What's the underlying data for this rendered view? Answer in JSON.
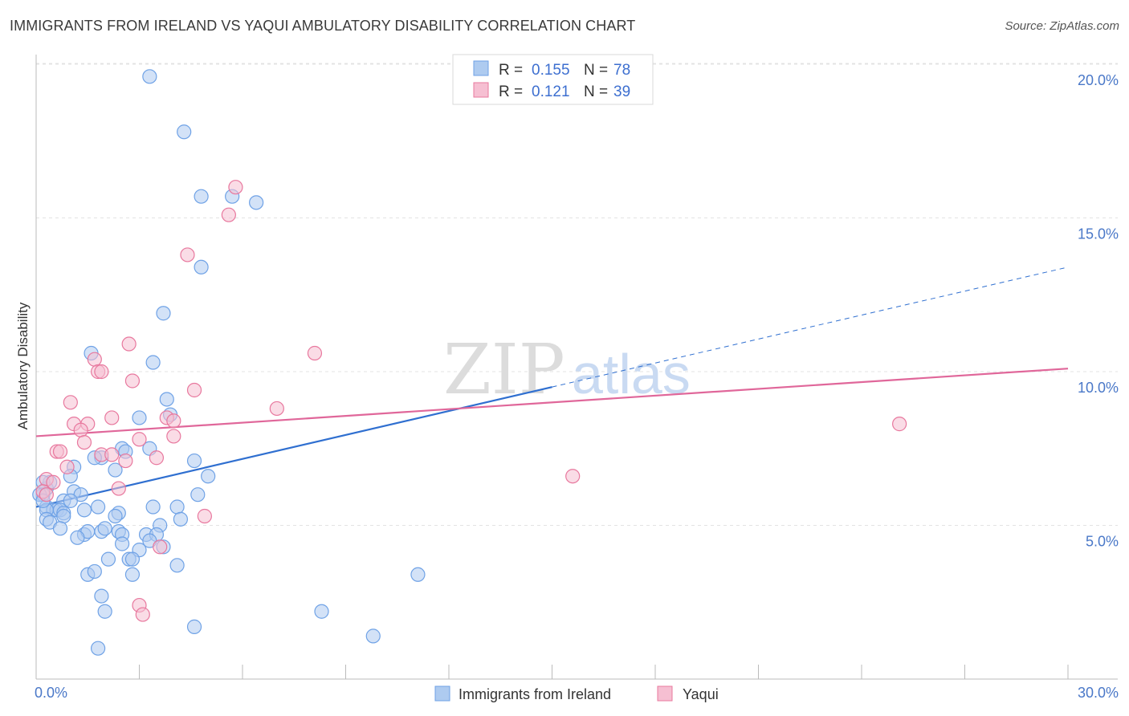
{
  "title": "IMMIGRANTS FROM IRELAND VS YAQUI AMBULATORY DISABILITY CORRELATION CHART",
  "source": "Source: ZipAtlas.com",
  "watermark": {
    "zip": "ZIP",
    "atlas": "atlas"
  },
  "legend": [
    {
      "r_label": "R =",
      "r_value": "0.155",
      "n_label": "N =",
      "n_value": "78"
    },
    {
      "r_label": "R =",
      "r_value": "0.121",
      "n_label": "N =",
      "n_value": "39"
    }
  ],
  "chart_data": {
    "type": "scatter",
    "title": "IMMIGRANTS FROM IRELAND VS YAQUI AMBULATORY DISABILITY CORRELATION CHART",
    "xlabel": "",
    "ylabel": "Ambulatory Disability",
    "xlim": [
      0,
      30
    ],
    "ylim": [
      0,
      20
    ],
    "x_tick_labels": [
      "0.0%",
      "30.0%"
    ],
    "y_ticks": [
      5,
      10,
      15,
      20
    ],
    "y_tick_labels": [
      "5.0%",
      "10.0%",
      "15.0%",
      "20.0%"
    ],
    "series": [
      {
        "name": "Immigrants from Ireland",
        "color": "#6fa2e6",
        "fill": "#aecbf0",
        "trend": {
          "x0": 0,
          "y0": 5.6,
          "x1": 15,
          "y1": 9.5,
          "dash_to_x": 30,
          "dash_to_y": 13.4
        },
        "points": [
          [
            3.3,
            19.6
          ],
          [
            4.3,
            17.8
          ],
          [
            4.8,
            15.7
          ],
          [
            5.7,
            15.7
          ],
          [
            6.4,
            15.5
          ],
          [
            4.8,
            13.4
          ],
          [
            3.7,
            11.9
          ],
          [
            1.6,
            10.6
          ],
          [
            3.4,
            10.3
          ],
          [
            3.8,
            9.1
          ],
          [
            3.9,
            8.6
          ],
          [
            3.0,
            8.5
          ],
          [
            2.5,
            7.5
          ],
          [
            2.6,
            7.4
          ],
          [
            3.3,
            7.5
          ],
          [
            4.6,
            7.1
          ],
          [
            1.9,
            7.2
          ],
          [
            1.7,
            7.2
          ],
          [
            2.3,
            6.8
          ],
          [
            1.1,
            6.9
          ],
          [
            1.0,
            6.6
          ],
          [
            5.0,
            6.6
          ],
          [
            0.3,
            6.2
          ],
          [
            0.2,
            6.0
          ],
          [
            1.1,
            6.1
          ],
          [
            1.3,
            6.0
          ],
          [
            4.7,
            6.0
          ],
          [
            0.8,
            5.8
          ],
          [
            1.0,
            5.8
          ],
          [
            0.3,
            5.6
          ],
          [
            0.5,
            5.5
          ],
          [
            0.6,
            5.5
          ],
          [
            0.7,
            5.5
          ],
          [
            0.8,
            5.4
          ],
          [
            0.3,
            5.5
          ],
          [
            1.4,
            5.5
          ],
          [
            1.8,
            5.6
          ],
          [
            3.4,
            5.6
          ],
          [
            4.1,
            5.6
          ],
          [
            0.3,
            5.2
          ],
          [
            0.4,
            5.1
          ],
          [
            0.8,
            5.3
          ],
          [
            2.4,
            5.4
          ],
          [
            2.3,
            5.3
          ],
          [
            4.2,
            5.2
          ],
          [
            3.6,
            5.0
          ],
          [
            0.7,
            4.9
          ],
          [
            1.4,
            4.7
          ],
          [
            1.5,
            4.8
          ],
          [
            1.9,
            4.8
          ],
          [
            2.0,
            4.9
          ],
          [
            2.4,
            4.8
          ],
          [
            2.5,
            4.7
          ],
          [
            3.2,
            4.7
          ],
          [
            3.5,
            4.7
          ],
          [
            1.2,
            4.6
          ],
          [
            2.5,
            4.4
          ],
          [
            3.3,
            4.5
          ],
          [
            3.0,
            4.2
          ],
          [
            3.7,
            4.3
          ],
          [
            2.1,
            3.9
          ],
          [
            2.7,
            3.9
          ],
          [
            2.8,
            3.9
          ],
          [
            4.1,
            3.7
          ],
          [
            11.1,
            3.4
          ],
          [
            1.5,
            3.4
          ],
          [
            1.7,
            3.5
          ],
          [
            2.8,
            3.4
          ],
          [
            1.9,
            2.7
          ],
          [
            2.0,
            2.2
          ],
          [
            8.3,
            2.2
          ],
          [
            4.6,
            1.7
          ],
          [
            9.8,
            1.4
          ],
          [
            1.8,
            1.0
          ],
          [
            0.1,
            6.0
          ],
          [
            0.2,
            5.8
          ],
          [
            0.4,
            6.4
          ],
          [
            0.2,
            6.4
          ]
        ]
      },
      {
        "name": "Yaqui",
        "color": "#e8789e",
        "fill": "#f6bfd2",
        "trend": {
          "x0": 0,
          "y0": 7.9,
          "x1": 30,
          "y1": 10.1
        },
        "points": [
          [
            5.8,
            16.0
          ],
          [
            5.6,
            15.1
          ],
          [
            4.4,
            13.8
          ],
          [
            8.1,
            10.6
          ],
          [
            2.7,
            10.9
          ],
          [
            1.7,
            10.4
          ],
          [
            1.8,
            10.0
          ],
          [
            1.9,
            10.0
          ],
          [
            2.8,
            9.7
          ],
          [
            4.6,
            9.4
          ],
          [
            1.0,
            9.0
          ],
          [
            7.0,
            8.8
          ],
          [
            2.2,
            8.5
          ],
          [
            3.8,
            8.5
          ],
          [
            1.5,
            8.3
          ],
          [
            1.1,
            8.3
          ],
          [
            1.3,
            8.1
          ],
          [
            4.0,
            8.4
          ],
          [
            3.0,
            7.8
          ],
          [
            4.0,
            7.9
          ],
          [
            1.4,
            7.7
          ],
          [
            0.6,
            7.4
          ],
          [
            0.7,
            7.4
          ],
          [
            1.9,
            7.3
          ],
          [
            2.2,
            7.3
          ],
          [
            2.6,
            7.1
          ],
          [
            3.5,
            7.2
          ],
          [
            0.9,
            6.9
          ],
          [
            0.3,
            6.5
          ],
          [
            0.5,
            6.4
          ],
          [
            0.2,
            6.1
          ],
          [
            0.3,
            6.0
          ],
          [
            2.4,
            6.2
          ],
          [
            15.6,
            6.6
          ],
          [
            25.1,
            8.3
          ],
          [
            4.9,
            5.3
          ],
          [
            3.6,
            4.3
          ],
          [
            3.0,
            2.4
          ],
          [
            3.1,
            2.1
          ]
        ]
      }
    ]
  },
  "bottom_legend": [
    {
      "label": "Immigrants from Ireland"
    },
    {
      "label": "Yaqui"
    }
  ]
}
